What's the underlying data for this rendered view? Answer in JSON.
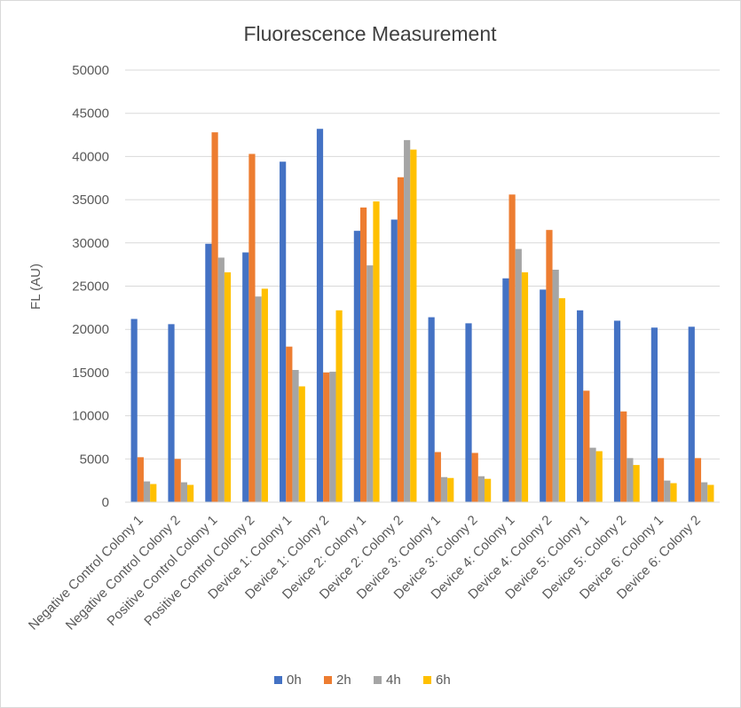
{
  "chart_data": {
    "type": "bar",
    "title": "Fluorescence Measurement",
    "xlabel": "",
    "ylabel": "FL (AU)",
    "ylim": [
      0,
      50000
    ],
    "yticks": [
      "0",
      "5000",
      "10000",
      "15000",
      "20000",
      "25000",
      "30000",
      "35000",
      "40000",
      "45000",
      "50000"
    ],
    "grid": true,
    "legend_position": "bottom",
    "categories": [
      "Negative Control Colony 1",
      "Negative Control Colony 2",
      "Positive Control Colony 1",
      "Positive Control Colony 2",
      "Device 1: Colony 1",
      "Device 1: Colony 2",
      "Device 2: Colony 1",
      "Device 2: Colony 2",
      "Device 3: Colony 1",
      "Device 3: Colony 2",
      "Device 4: Colony 1",
      "Device 4: Colony 2",
      "Device 5: Colony 1",
      "Device 5: Colony 2",
      "Device 6: Colony 1",
      "Device 6: Colony 2"
    ],
    "series": [
      {
        "name": "0h",
        "color": "#4472c4",
        "values": [
          21200,
          20600,
          29900,
          28900,
          39400,
          43200,
          31400,
          32700,
          21400,
          20700,
          25900,
          24600,
          22200,
          21000,
          20200,
          20300
        ]
      },
      {
        "name": "2h",
        "color": "#ed7d31",
        "values": [
          5200,
          5000,
          42800,
          40300,
          18000,
          15000,
          34100,
          37600,
          5800,
          5700,
          35600,
          31500,
          12900,
          10500,
          5100,
          5100
        ]
      },
      {
        "name": "4h",
        "color": "#a5a5a5",
        "values": [
          2400,
          2300,
          28300,
          23800,
          15300,
          15100,
          27400,
          41900,
          2900,
          3000,
          29300,
          26900,
          6300,
          5100,
          2500,
          2300
        ]
      },
      {
        "name": "6h",
        "color": "#ffc000",
        "values": [
          2100,
          2000,
          26600,
          24700,
          13400,
          22200,
          34800,
          40800,
          2800,
          2700,
          26600,
          23600,
          5900,
          4300,
          2200,
          2000
        ]
      }
    ]
  }
}
